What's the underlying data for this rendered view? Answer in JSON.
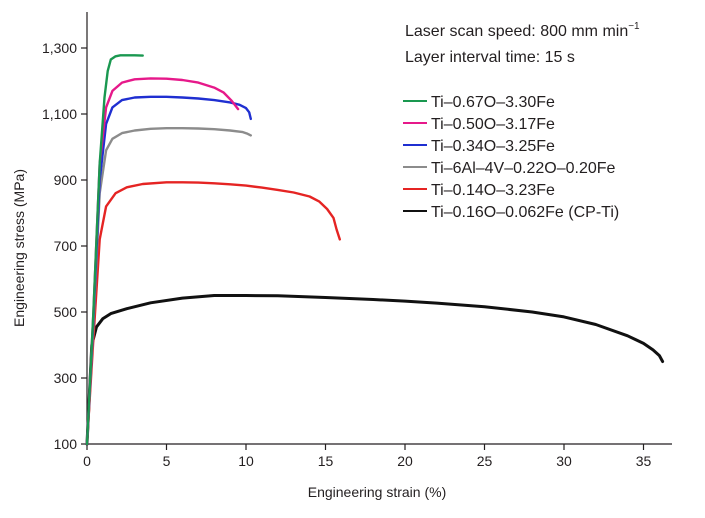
{
  "chart_data": {
    "type": "line",
    "title": "",
    "xlabel": "Engineering strain (%)",
    "ylabel": "Engineering stress (MPa)",
    "xlim": [
      0,
      37
    ],
    "ylim": [
      100,
      1420
    ],
    "xticks": [
      0,
      5,
      10,
      15,
      20,
      25,
      30,
      35
    ],
    "yticks": [
      100,
      300,
      500,
      700,
      900,
      1100,
      1300
    ],
    "ytick_labels": [
      "100",
      "300",
      "500",
      "700",
      "900",
      "1,100",
      "1,300"
    ],
    "annotations": {
      "line1_main": "Laser scan speed: 800 mm min",
      "line1_sup": "−1",
      "line2": "Layer interval time: 15 s"
    },
    "grid": false,
    "legend_position": "right",
    "series": [
      {
        "name": "Ti–0.67O–3.30Fe",
        "color": "#1a9850",
        "x": [
          0,
          0.4,
          0.8,
          1.1,
          1.3,
          1.5,
          1.8,
          2.1,
          2.5,
          3.0,
          3.5
        ],
        "y": [
          100,
          500,
          950,
          1150,
          1230,
          1265,
          1275,
          1278,
          1278,
          1278,
          1277
        ]
      },
      {
        "name": "Ti–0.50O–3.17Fe",
        "color": "#e6198a",
        "x": [
          0,
          0.4,
          0.8,
          1.2,
          1.6,
          2.2,
          3,
          4,
          5,
          6,
          7,
          8,
          8.6,
          9.1,
          9.5
        ],
        "y": [
          100,
          500,
          950,
          1120,
          1170,
          1195,
          1205,
          1208,
          1207,
          1203,
          1195,
          1180,
          1165,
          1140,
          1115
        ]
      },
      {
        "name": "Ti–0.34O–3.25Fe",
        "color": "#1f2fd1",
        "x": [
          0,
          0.4,
          0.8,
          1.2,
          1.6,
          2.2,
          3,
          4,
          5,
          6,
          7,
          8,
          9,
          9.6,
          10.0,
          10.2,
          10.3
        ],
        "y": [
          100,
          480,
          900,
          1070,
          1120,
          1142,
          1150,
          1152,
          1152,
          1150,
          1147,
          1142,
          1135,
          1128,
          1118,
          1105,
          1085
        ]
      },
      {
        "name": "Ti–6Al–4V–0.22O–0.20Fe",
        "color": "#8c8c8c",
        "x": [
          0,
          0.4,
          0.8,
          1.2,
          1.6,
          2.2,
          3,
          4,
          5,
          6,
          7,
          8,
          9,
          9.8,
          10.1,
          10.3
        ],
        "y": [
          100,
          460,
          860,
          990,
          1025,
          1042,
          1050,
          1055,
          1057,
          1057,
          1056,
          1054,
          1050,
          1045,
          1040,
          1035
        ]
      },
      {
        "name": "Ti–0.14O–3.23Fe",
        "color": "#e52423",
        "x": [
          0,
          0.4,
          0.8,
          1.2,
          1.8,
          2.5,
          3.5,
          5,
          6,
          7,
          8,
          9,
          10,
          11,
          12,
          13,
          14,
          14.6,
          15.1,
          15.5,
          15.7,
          15.9
        ],
        "y": [
          100,
          420,
          720,
          820,
          860,
          878,
          888,
          893,
          893,
          892,
          890,
          887,
          883,
          877,
          870,
          862,
          850,
          835,
          812,
          785,
          750,
          720
        ]
      },
      {
        "name": "Ti–0.16O–0.062Fe (CP-Ti)",
        "color": "#111111",
        "x": [
          0,
          0.3,
          0.6,
          1.0,
          1.5,
          2.5,
          4,
          6,
          8,
          10,
          12,
          15,
          18,
          20,
          22,
          25,
          28,
          30,
          32,
          34,
          35,
          35.6,
          36.0,
          36.2
        ],
        "y": [
          100,
          400,
          455,
          480,
          495,
          510,
          528,
          542,
          550,
          550,
          549,
          544,
          538,
          533,
          527,
          516,
          500,
          485,
          462,
          428,
          405,
          385,
          368,
          350
        ]
      }
    ]
  }
}
